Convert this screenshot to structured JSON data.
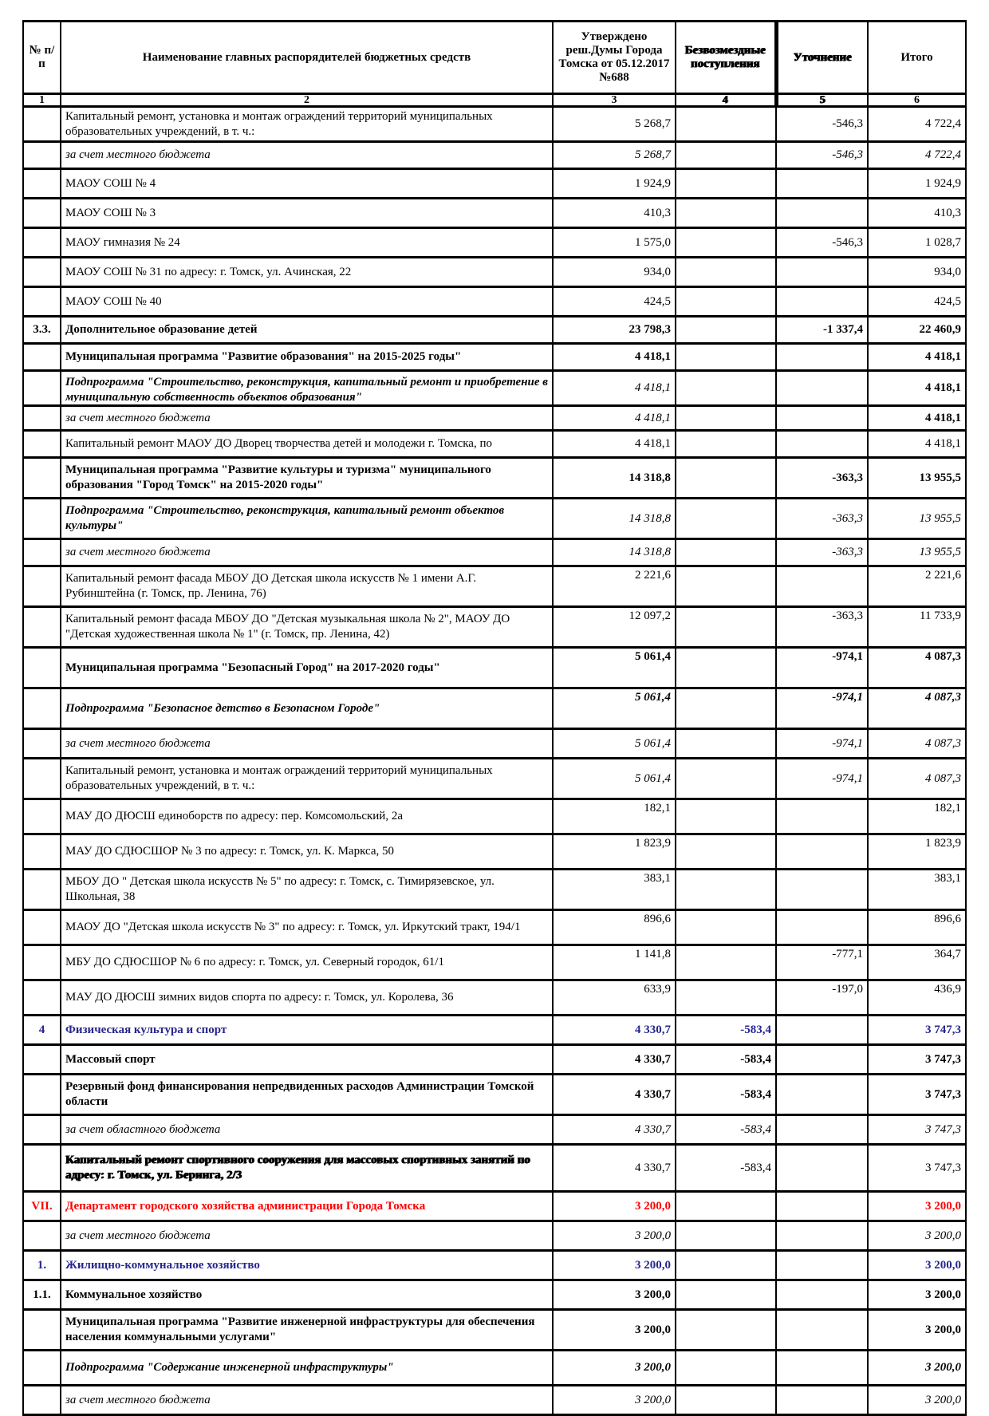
{
  "header": {
    "col1": "№ п/п",
    "col2": "Наименование главных распорядителей бюджетных средств",
    "col3": "Утверждено реш.Думы Города Томска от 05.12.2017 №688",
    "col4": "Безвозмездные поступления",
    "col5": "Уточнение",
    "col6": "Итого",
    "nums": [
      "1",
      "2",
      "3",
      "4",
      "5",
      "6"
    ]
  },
  "rows": [
    {
      "n": "",
      "t": "Капитальный ремонт, установка и монтаж ограждений территорий муниципальных образовательных учреждений, в т. ч.:",
      "c3": "5 268,7",
      "c4": "",
      "c5": "-546,3",
      "c6": "4 722,4",
      "ls": "r",
      "vs": "r",
      "sz": "ml"
    },
    {
      "n": "",
      "t": "за счет местного бюджета",
      "c3": "5 268,7",
      "c4": "",
      "c5": "-546,3",
      "c6": "4 722,4",
      "ls": "i",
      "vs": "i",
      "sz": "s"
    },
    {
      "n": "",
      "t": "МАОУ СОШ № 4",
      "c3": "1 924,9",
      "c4": "",
      "c5": "",
      "c6": "1 924,9",
      "ls": "r",
      "vs": "r",
      "sz": "m"
    },
    {
      "n": "",
      "t": "МАОУ СОШ № 3",
      "c3": "410,3",
      "c4": "",
      "c5": "",
      "c6": "410,3",
      "ls": "r",
      "vs": "r",
      "sz": "m"
    },
    {
      "n": "",
      "t": "МАОУ гимназия № 24",
      "c3": "1 575,0",
      "c4": "",
      "c5": "-546,3",
      "c6": "1 028,7",
      "ls": "r",
      "vs": "r",
      "sz": "m"
    },
    {
      "n": "",
      "t": "МАОУ СОШ № 31 по адресу: г. Томск, ул. Ачинская, 22",
      "c3": "934,0",
      "c4": "",
      "c5": "",
      "c6": "934,0",
      "ls": "r",
      "vs": "r",
      "sz": "m"
    },
    {
      "n": "",
      "t": "МАОУ СОШ № 40",
      "c3": "424,5",
      "c4": "",
      "c5": "",
      "c6": "424,5",
      "ls": "r",
      "vs": "r",
      "sz": "m"
    },
    {
      "n": "3.3.",
      "t": "Дополнительное образование детей",
      "c3": "23 798,3",
      "c4": "",
      "c5": "-1 337,4",
      "c6": "22 460,9",
      "ls": "b",
      "vs": "b",
      "sz": "s"
    },
    {
      "n": "",
      "t": "Муниципальная программа \"Развитие образования\" на 2015-2025 годы\"",
      "c3": "4 418,1",
      "c4": "",
      "c5": "",
      "c6": "4 418,1",
      "ls": "b",
      "vs": "b",
      "sz": "s"
    },
    {
      "n": "",
      "t": "Подпрограмма \"Строительство, реконструкция, капитальный ремонт и приобретение в муниципальную собственность объектов образования\"",
      "c3": "4 418,1",
      "c4": "",
      "c5": "",
      "c6": "4 418,1",
      "ls": "bi",
      "vs": "i",
      "io": "b",
      "sz": "ml",
      "clip": true
    },
    {
      "n": "",
      "t": "за счет местного бюджета",
      "c3": "4 418,1",
      "c4": "",
      "c5": "",
      "c6": "4 418,1",
      "ls": "i",
      "vs": "i",
      "io": "b",
      "sz": "xs"
    },
    {
      "n": "",
      "t": "Капитальный ремонт МАОУ ДО Дворец творчества детей и молодежи г. Томска, по",
      "c3": "4 418,1",
      "c4": "",
      "c5": "",
      "c6": "4 418,1",
      "ls": "r",
      "vs": "r",
      "sz": "s",
      "nowrap": true
    },
    {
      "n": "",
      "t": "Муниципальная программа \"Развитие культуры и туризма\" муниципального образования \"Город Томск\" на 2015-2020 годы\"",
      "c3": "14 318,8",
      "c4": "",
      "c5": "-363,3",
      "c6": "13 955,5",
      "ls": "b",
      "vs": "b",
      "sz": "l"
    },
    {
      "n": "",
      "t": "Подпрограмма \"Строительство, реконструкция, капитальный ремонт объектов культуры\"",
      "c3": "14 318,8",
      "c4": "",
      "c5": "-363,3",
      "c6": "13 955,5",
      "ls": "bi",
      "vs": "i",
      "sz": "l"
    },
    {
      "n": "",
      "t": "за счет  местного бюджета",
      "c3": "14 318,8",
      "c4": "",
      "c5": "-363,3",
      "c6": "13 955,5",
      "ls": "i",
      "vs": "i",
      "sz": "s"
    },
    {
      "n": "",
      "t": "Капитальный ремонт фасада МБОУ ДО Детская школа искусств № 1 имени А.Г. Рубинштейна (г. Томск, пр. Ленина, 76)",
      "c3": "2 221,6",
      "c4": "",
      "c5": "",
      "c6": "2 221,6",
      "ls": "r",
      "vs": "r",
      "sz": "l",
      "va": "t"
    },
    {
      "n": "",
      "t": "Капитальный ремонт фасада МБОУ ДО \"Детская музыкальная школа № 2\", МАОУ ДО \"Детская художественная школа № 1\" (г. Томск, пр. Ленина, 42)",
      "c3": "12 097,2",
      "c4": "",
      "c5": "-363,3",
      "c6": "11 733,9",
      "ls": "r",
      "vs": "r",
      "sz": "l",
      "va": "t"
    },
    {
      "n": "",
      "t": "Муниципальная программа \"Безопасный Город\" на 2017-2020 годы\"",
      "c3": "5 061,4",
      "c4": "",
      "c5": "-974,1",
      "c6": "4 087,3",
      "ls": "b",
      "vs": "b",
      "sz": "l",
      "va": "t"
    },
    {
      "n": "",
      "t": "Подпрограмма  \"Безопасное детство в Безопасном Городе\"",
      "c3": "5 061,4",
      "c4": "",
      "c5": "-974,1",
      "c6": "4 087,3",
      "ls": "bi",
      "vs": "bi",
      "sz": "l",
      "va": "t"
    },
    {
      "n": "",
      "t": "за счет  местного бюджета",
      "c3": "5 061,4",
      "c4": "",
      "c5": "-974,1",
      "c6": "4 087,3",
      "ls": "i",
      "vs": "i",
      "sz": "m"
    },
    {
      "n": "",
      "t": "Капитальный ремонт, установка и монтаж ограждений территорий муниципальных образовательных учреждений, в т. ч.:",
      "c3": "5 061,4",
      "c4": "",
      "c5": "-974,1",
      "c6": "4 087,3",
      "ls": "r",
      "vs": "i",
      "sz": "l"
    },
    {
      "n": "",
      "t": "МАУ ДО ДЮСШ единоборств по адресу: пер. Комсомольский, 2а",
      "c3": "182,1",
      "c4": "",
      "c5": "",
      "c6": "182,1",
      "ls": "r",
      "vs": "r",
      "sz": "ml",
      "va": "t"
    },
    {
      "n": "",
      "t": "МАУ ДО СДЮСШОР № 3 по адресу: г. Томск, ул. К. Маркса, 50",
      "c3": "1 823,9",
      "c4": "",
      "c5": "",
      "c6": "1 823,9",
      "ls": "r",
      "vs": "r",
      "sz": "ml",
      "va": "t"
    },
    {
      "n": "",
      "t": "МБОУ ДО \" Детская школа искусств № 5\" по адресу: г. Томск, с. Тимирязевское, ул. Школьная, 38",
      "c3": "383,1",
      "c4": "",
      "c5": "",
      "c6": "383,1",
      "ls": "r",
      "vs": "r",
      "sz": "l",
      "va": "t"
    },
    {
      "n": "",
      "t": "МАОУ ДО \"Детская школа искусств № 3\" по адресу: г. Томск, ул. Иркутский тракт, 194/1",
      "c3": "896,6",
      "c4": "",
      "c5": "",
      "c6": "896,6",
      "ls": "r",
      "vs": "r",
      "sz": "ml",
      "va": "t"
    },
    {
      "n": "",
      "t": "МБУ ДО СДЮСШОР № 6 по адресу: г. Томск, ул. Северный городок, 61/1",
      "c3": "1 141,8",
      "c4": "",
      "c5": "-777,1",
      "c6": "364,7",
      "ls": "r",
      "vs": "r",
      "sz": "ml",
      "va": "t"
    },
    {
      "n": "",
      "t": "МАУ ДО ДЮСШ зимних видов спорта по адресу: г. Томск, ул. Королева, 36",
      "c3": "633,9",
      "c4": "",
      "c5": "-197,0",
      "c6": "436,9",
      "ls": "r",
      "vs": "r",
      "sz": "ml",
      "va": "t"
    },
    {
      "n": "4",
      "t": "Физическая культура и спорт",
      "c3": "4 330,7",
      "c4": "-583,4",
      "c5": "",
      "c6": "3 747,3",
      "ls": "b",
      "vs": "b",
      "col": "blue",
      "sz": "m"
    },
    {
      "n": "",
      "t": "Массовый спорт",
      "c3": "4 330,7",
      "c4": "-583,4",
      "c5": "",
      "c6": "3 747,3",
      "ls": "b",
      "vs": "b",
      "sz": "m"
    },
    {
      "n": "",
      "t": "Резервный фонд финансирования непредвиденных расходов Администрации Томской области",
      "c3": "4 330,7",
      "c4": "-583,4",
      "c5": "",
      "c6": "3 747,3",
      "ls": "b",
      "vs": "b",
      "sz": "l"
    },
    {
      "n": "",
      "t": "за счет областного бюджета",
      "c3": "4 330,7",
      "c4": "-583,4",
      "c5": "",
      "c6": "3 747,3",
      "ls": "i",
      "vs": "i",
      "sz": "m"
    },
    {
      "n": "",
      "t": "Капитальный ремонт спортивного сооружения для массовых спортивных занятий по адресу: г. Томск, ул. Беринга, 2/3",
      "c3": "4 330,7",
      "c4": "-583,4",
      "c5": "",
      "c6": "3 747,3",
      "ls": "b",
      "vs": "r",
      "sz": "xl",
      "smudge": true
    },
    {
      "n": "VII.",
      "t": "Департамент городского хозяйства администрации Города Томска",
      "c3": "3 200,0",
      "c4": "",
      "c5": "",
      "c6": "3 200,0",
      "ls": "b",
      "vs": "b",
      "col": "red",
      "sz": "m"
    },
    {
      "n": "",
      "t": "за счет местного бюджета",
      "c3": "3 200,0",
      "c4": "",
      "c5": "",
      "c6": "3 200,0",
      "ls": "i",
      "vs": "i",
      "sz": "m"
    },
    {
      "n": "1.",
      "t": "Жилищно-коммунальное хозяйство",
      "c3": "3 200,0",
      "c4": "",
      "c5": "",
      "c6": "3 200,0",
      "ls": "b",
      "vs": "b",
      "col": "blue",
      "sz": "m"
    },
    {
      "n": "1.1.",
      "t": "Коммунальное хозяйство",
      "c3": "3 200,0",
      "c4": "",
      "c5": "",
      "c6": "3 200,0",
      "ls": "b",
      "vs": "b",
      "sz": "m"
    },
    {
      "n": "",
      "t": "Муниципальная программа \"Развитие инженерной инфраструктуры для обеспечения населения коммунальными услугами\"",
      "c3": "3 200,0",
      "c4": "",
      "c5": "",
      "c6": "3 200,0",
      "ls": "b",
      "vs": "b",
      "sz": "l"
    },
    {
      "n": "",
      "t": "Подпрограмма \"Содержание инженерной инфраструктуры\"",
      "c3": "3 200,0",
      "c4": "",
      "c5": "",
      "c6": "3 200,0",
      "ls": "bi",
      "vs": "bi",
      "sz": "ml"
    },
    {
      "n": "",
      "t": "за счет  местного бюджета",
      "c3": "3 200,0",
      "c4": "",
      "c5": "",
      "c6": "3 200,0",
      "ls": "i",
      "vs": "i",
      "sz": "m"
    }
  ],
  "colors": {
    "accent_blue": "#26268F",
    "accent_red": "#ff0000",
    "line": "#000000"
  }
}
